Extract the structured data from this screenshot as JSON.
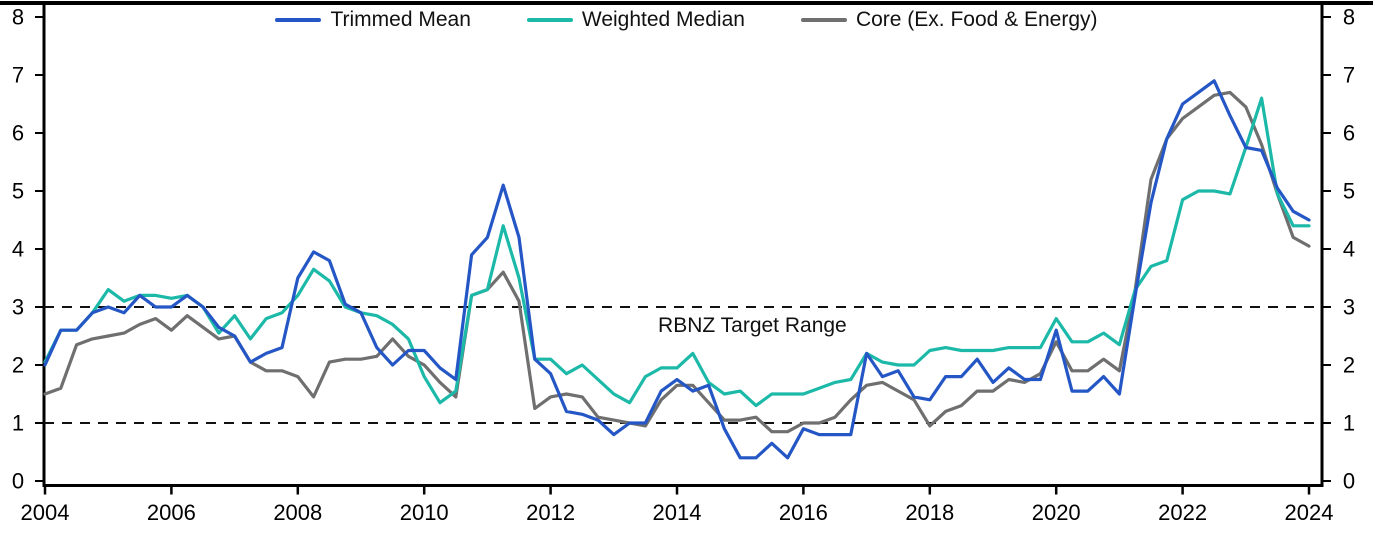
{
  "chart_data": {
    "type": "line",
    "title": "",
    "xlabel": "",
    "ylabel": "",
    "x_start": 2004,
    "x_step": 0.25,
    "xlim": [
      2004,
      2024.1
    ],
    "ylim": [
      0,
      8
    ],
    "xticks": [
      2004,
      2006,
      2008,
      2010,
      2012,
      2014,
      2016,
      2018,
      2020,
      2022,
      2024
    ],
    "yticks": [
      0,
      1,
      2,
      3,
      4,
      5,
      6,
      7,
      8
    ],
    "grid": "off",
    "legend_position": "top-center",
    "target_range": [
      1,
      3
    ],
    "annotation": {
      "text": "RBNZ Target Range",
      "x": 2013.7,
      "y": 2.88
    },
    "series": [
      {
        "name": "Trimmed Mean",
        "color": "#2457C5",
        "values": [
          2.0,
          2.6,
          2.6,
          2.9,
          3.0,
          2.9,
          3.2,
          3.0,
          3.0,
          3.2,
          3.0,
          2.65,
          2.5,
          2.05,
          2.2,
          2.3,
          3.5,
          3.95,
          3.8,
          3.05,
          2.9,
          2.3,
          2.0,
          2.25,
          2.25,
          1.95,
          1.75,
          3.9,
          4.2,
          5.1,
          4.2,
          2.1,
          1.85,
          1.2,
          1.15,
          1.05,
          0.8,
          1.0,
          1.0,
          1.55,
          1.75,
          1.55,
          1.65,
          0.9,
          0.4,
          0.4,
          0.65,
          0.4,
          0.9,
          0.8,
          0.8,
          0.8,
          2.2,
          1.8,
          1.9,
          1.45,
          1.4,
          1.8,
          1.8,
          2.1,
          1.7,
          1.95,
          1.75,
          1.75,
          2.6,
          1.55,
          1.55,
          1.8,
          1.5,
          3.2,
          4.8,
          5.9,
          6.5,
          6.7,
          6.9,
          6.3,
          5.75,
          5.7,
          5.05,
          4.65,
          4.5
        ]
      },
      {
        "name": "Weighted Median",
        "color": "#1CB9A8",
        "values": [
          2.05,
          2.6,
          2.6,
          2.9,
          3.3,
          3.1,
          3.2,
          3.2,
          3.15,
          3.2,
          3.0,
          2.55,
          2.85,
          2.45,
          2.8,
          2.9,
          3.2,
          3.65,
          3.45,
          3.0,
          2.9,
          2.85,
          2.7,
          2.45,
          1.8,
          1.35,
          1.55,
          3.2,
          3.3,
          4.4,
          3.5,
          2.1,
          2.1,
          1.85,
          2.0,
          1.75,
          1.5,
          1.35,
          1.8,
          1.95,
          1.95,
          2.2,
          1.7,
          1.5,
          1.55,
          1.3,
          1.5,
          1.5,
          1.5,
          1.6,
          1.7,
          1.75,
          2.2,
          2.05,
          2.0,
          2.0,
          2.25,
          2.3,
          2.25,
          2.25,
          2.25,
          2.3,
          2.3,
          2.3,
          2.8,
          2.4,
          2.4,
          2.55,
          2.35,
          3.3,
          3.7,
          3.8,
          4.85,
          5.0,
          5.0,
          4.95,
          5.75,
          6.6,
          4.95,
          4.4,
          4.4
        ]
      },
      {
        "name": "Core (Ex. Food & Energy)",
        "color": "#6F6F6F",
        "values": [
          1.5,
          1.6,
          2.35,
          2.45,
          2.5,
          2.55,
          2.7,
          2.8,
          2.6,
          2.85,
          2.65,
          2.45,
          2.5,
          2.05,
          1.9,
          1.9,
          1.8,
          1.45,
          2.05,
          2.1,
          2.1,
          2.15,
          2.45,
          2.15,
          2.0,
          1.7,
          1.45,
          3.2,
          3.3,
          3.6,
          3.1,
          1.25,
          1.45,
          1.5,
          1.45,
          1.1,
          1.05,
          1.0,
          0.95,
          1.4,
          1.65,
          1.65,
          1.35,
          1.05,
          1.05,
          1.1,
          0.85,
          0.85,
          1.0,
          1.0,
          1.1,
          1.4,
          1.65,
          1.7,
          1.55,
          1.4,
          0.95,
          1.2,
          1.3,
          1.55,
          1.55,
          1.75,
          1.7,
          1.85,
          2.4,
          1.9,
          1.9,
          2.1,
          1.9,
          3.3,
          5.2,
          5.9,
          6.25,
          6.45,
          6.65,
          6.7,
          6.45,
          5.8,
          4.95,
          4.2,
          4.05
        ]
      }
    ]
  },
  "colors": {
    "axis": "#000000",
    "dashed_line": "#111111",
    "background": "#ffffff"
  }
}
